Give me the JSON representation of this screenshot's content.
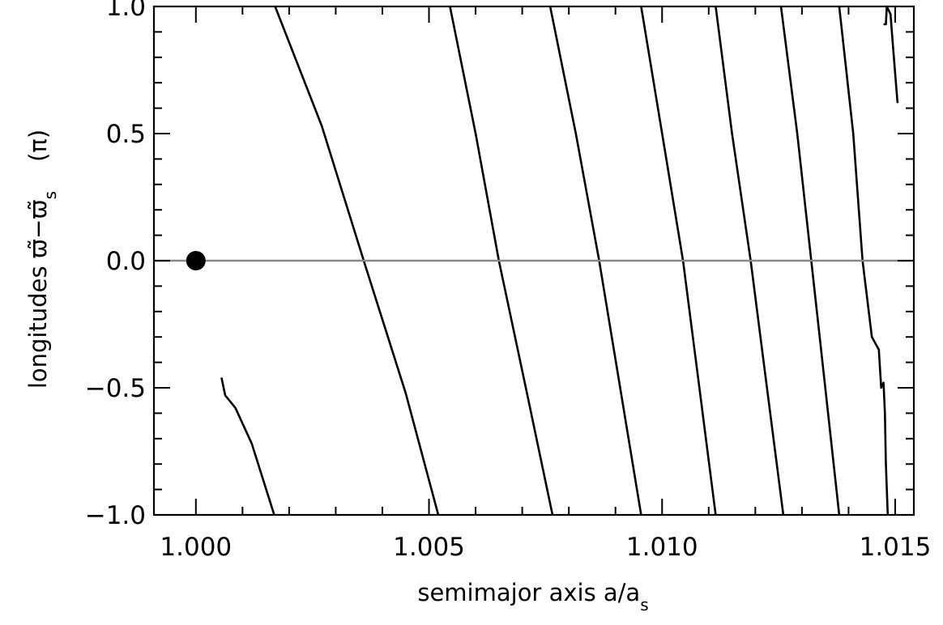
{
  "chart_data": {
    "type": "line",
    "xlabel": "semimajor axis a/a",
    "xlabel_sub": "s",
    "ylabel": "longitudes ϖ̃−ϖ̃",
    "ylabel_sub": "s",
    "ylabel_unit": "(π)",
    "xlim": [
      0.9991,
      1.0154
    ],
    "ylim": [
      -1.0,
      1.0
    ],
    "xticks": [
      1.0,
      1.005,
      1.01,
      1.015
    ],
    "xtick_labels": [
      "1.000",
      "1.005",
      "1.010",
      "1.015"
    ],
    "yticks": [
      -1.0,
      -0.5,
      0.0,
      0.5,
      1.0
    ],
    "ytick_labels": [
      "−1.0",
      "−0.5",
      "0.0",
      "0.5",
      "1.0"
    ],
    "grid": false,
    "reference_line": {
      "y": 0.0,
      "color": "#888888"
    },
    "marker": {
      "x": 1.0,
      "y": 0.0,
      "color": "#000000"
    },
    "series_color": "#000000",
    "series": [
      {
        "x": [
          1.00055,
          1.00063,
          1.00072,
          1.00085,
          1.0012,
          1.00168
        ],
        "y": [
          -0.46,
          -0.53,
          -0.55,
          -0.58,
          -0.72,
          -1.0
        ]
      },
      {
        "x": [
          1.0017,
          1.0027,
          1.0036,
          1.0045,
          1.0052
        ],
        "y": [
          1.0,
          0.53,
          0.0,
          -0.52,
          -1.0
        ]
      },
      {
        "x": [
          1.00545,
          1.006,
          1.0065,
          1.0071,
          1.00765
        ],
        "y": [
          1.0,
          0.5,
          0.0,
          -0.52,
          -1.0
        ]
      },
      {
        "x": [
          1.0076,
          1.00815,
          1.00865,
          1.0091,
          1.00955
        ],
        "y": [
          1.0,
          0.5,
          0.0,
          -0.5,
          -1.0
        ]
      },
      {
        "x": [
          1.00955,
          1.01,
          1.01045,
          1.0108,
          1.01115
        ],
        "y": [
          1.0,
          0.5,
          0.0,
          -0.5,
          -1.0
        ]
      },
      {
        "x": [
          1.01115,
          1.0115,
          1.0119,
          1.01225,
          1.0126
        ],
        "y": [
          1.0,
          0.5,
          0.0,
          -0.5,
          -1.0
        ]
      },
      {
        "x": [
          1.01255,
          1.0129,
          1.0132,
          1.0135,
          1.0138
        ],
        "y": [
          1.0,
          0.5,
          0.0,
          -0.5,
          -1.0
        ]
      },
      {
        "x": [
          1.0138,
          1.0141,
          1.0143,
          1.0145,
          1.01465,
          1.0147,
          1.01475,
          1.01478,
          1.0148,
          1.01484
        ],
        "y": [
          1.0,
          0.5,
          0.0,
          -0.3,
          -0.35,
          -0.5,
          -0.48,
          -0.6,
          -0.8,
          -1.0
        ]
      },
      {
        "x": [
          1.01475,
          1.0148,
          1.01482,
          1.0149,
          1.01495,
          1.01505
        ],
        "y": [
          0.93,
          0.93,
          1.0,
          0.97,
          0.85,
          0.62
        ]
      }
    ]
  }
}
